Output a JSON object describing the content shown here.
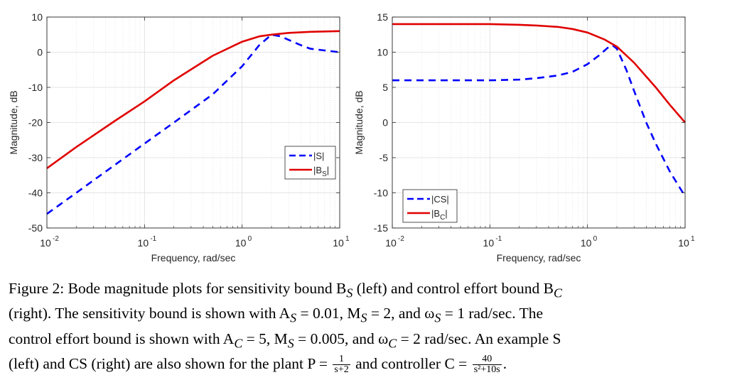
{
  "chart_data": [
    {
      "type": "line",
      "xscale": "log",
      "xlim": [
        0.01,
        10
      ],
      "ylim": [
        -50,
        10
      ],
      "xticks": [
        0.01,
        0.1,
        1,
        10
      ],
      "xtick_labels": [
        "10",
        "10",
        "10",
        "10"
      ],
      "xtick_exponents": [
        "-2",
        "-1",
        "0",
        "1"
      ],
      "yticks": [
        -50,
        -40,
        -30,
        -20,
        -10,
        0,
        10
      ],
      "ytick_labels": [
        "-50",
        "-40",
        "-30",
        "-20",
        "-10",
        "0",
        "10"
      ],
      "xlabel": "Frequency, rad/sec",
      "ylabel": "Magnitude, dB",
      "grid": true,
      "legend_position": "lower-right",
      "series": [
        {
          "name": "|S|",
          "legend_text": "|S|",
          "legend_sub": "",
          "color": "#0000ff",
          "style": "dashed",
          "x": [
            0.01,
            0.02,
            0.05,
            0.1,
            0.2,
            0.5,
            1,
            1.5,
            2,
            2.5,
            3,
            4,
            5,
            7,
            10
          ],
          "y": [
            -46,
            -40,
            -32,
            -26,
            -20,
            -12,
            -4,
            2,
            5,
            4.5,
            3.5,
            2,
            1,
            0.5,
            0
          ]
        },
        {
          "name": "|B_S|",
          "legend_text": "|B",
          "legend_sub": "S",
          "legend_tail": "|",
          "color": "#e00000",
          "style": "solid",
          "x": [
            0.01,
            0.02,
            0.05,
            0.1,
            0.2,
            0.5,
            1,
            1.5,
            2,
            3,
            5,
            10
          ],
          "y": [
            -33,
            -27,
            -19.5,
            -14,
            -8,
            -1,
            3,
            4.5,
            5,
            5.5,
            5.8,
            6
          ]
        }
      ]
    },
    {
      "type": "line",
      "xscale": "log",
      "xlim": [
        0.01,
        10
      ],
      "ylim": [
        -15,
        15
      ],
      "xticks": [
        0.01,
        0.1,
        1,
        10
      ],
      "xtick_labels": [
        "10",
        "10",
        "10",
        "10"
      ],
      "xtick_exponents": [
        "-2",
        "-1",
        "0",
        "1"
      ],
      "yticks": [
        -15,
        -10,
        -5,
        0,
        5,
        10,
        15
      ],
      "ytick_labels": [
        "-15",
        "-10",
        "-5",
        "0",
        "5",
        "10",
        "15"
      ],
      "xlabel": "Frequency, rad/sec",
      "ylabel": "Magnitude, dB",
      "grid": true,
      "legend_position": "lower-left",
      "series": [
        {
          "name": "|CS|",
          "legend_text": "|CS|",
          "legend_sub": "",
          "color": "#0000ff",
          "style": "dashed",
          "x": [
            0.01,
            0.05,
            0.1,
            0.2,
            0.3,
            0.5,
            0.7,
            1,
            1.3,
            1.6,
            1.8,
            2,
            2.5,
            3,
            4,
            5,
            7,
            10
          ],
          "y": [
            6,
            6,
            6,
            6.1,
            6.3,
            6.7,
            7.2,
            8.3,
            9.5,
            10.6,
            11,
            10.5,
            7.5,
            4.5,
            0,
            -3,
            -7,
            -10.5
          ]
        },
        {
          "name": "|B_C|",
          "legend_text": "|B",
          "legend_sub": "C",
          "legend_tail": "|",
          "color": "#e00000",
          "style": "solid",
          "x": [
            0.01,
            0.1,
            0.2,
            0.3,
            0.5,
            0.7,
            1,
            1.5,
            2,
            3,
            5,
            7,
            10
          ],
          "y": [
            14,
            14,
            13.9,
            13.8,
            13.6,
            13.3,
            12.8,
            11.8,
            10.8,
            8.5,
            5,
            2.5,
            0
          ]
        }
      ]
    }
  ],
  "caption": {
    "line1": "Figure 2: Bode magnitude plots for sensitivity bound B",
    "line1_sub": "S",
    "line1_mid": " (left) and control effort bound B",
    "line1_sub2": "C",
    "line2": "(right).  The sensitivity bound is shown with A",
    "line2_sub": "S",
    "line2_mid": " = 0.01, M",
    "line2_sub2": "S",
    "line2_mid2": " = 2, and ω",
    "line2_sub3": "S",
    "line2_end": " = 1 rad/sec.  The",
    "line3": "control effort bound is shown with A",
    "line3_sub": "C",
    "line3_mid": " = 5, M",
    "line3_sub2": "S",
    "line3_mid2": " = 0.005, and ω",
    "line3_sub3": "C",
    "line3_end": " = 2 rad/sec.  An example S",
    "line4": "(left) and CS (right) are also shown for the plant P = ",
    "line4_frac1_num": "1",
    "line4_frac1_den": "s+2",
    "line4_mid": " and controller C = ",
    "line4_frac2_num": "40",
    "line4_frac2_den": "s²+10s",
    "line4_end": "."
  }
}
